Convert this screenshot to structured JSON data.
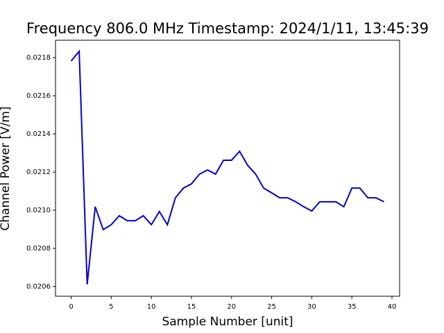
{
  "chart_data": {
    "type": "line",
    "title": "Frequency 806.0 MHz Timestamp: 2024/1/11, 13:45:39",
    "x_label": "Sample Number [unit]",
    "y_label": "Channel Power [V/m]",
    "x": [
      0,
      1,
      2,
      3,
      4,
      5,
      6,
      7,
      8,
      9,
      10,
      11,
      12,
      13,
      14,
      15,
      16,
      17,
      18,
      19,
      20,
      21,
      22,
      23,
      24,
      25,
      26,
      27,
      28,
      29,
      30,
      31,
      32,
      33,
      34,
      35,
      36,
      37,
      38,
      39
    ],
    "series": [
      {
        "name": "Channel Power",
        "color": "#0000cc",
        "values": [
          0.021782,
          0.021833,
          0.020611,
          0.021018,
          0.020898,
          0.020924,
          0.020971,
          0.020945,
          0.020945,
          0.020971,
          0.020924,
          0.020993,
          0.020924,
          0.021065,
          0.021116,
          0.021138,
          0.021189,
          0.021211,
          0.021189,
          0.021262,
          0.021262,
          0.021309,
          0.021236,
          0.021189,
          0.021116,
          0.021091,
          0.021065,
          0.021065,
          0.021044,
          0.021018,
          0.020996,
          0.021044,
          0.021044,
          0.021044,
          0.021018,
          0.021116,
          0.021116,
          0.021065,
          0.021065,
          0.021044
        ]
      }
    ],
    "xlim": [
      -1.95,
      40.95
    ],
    "xticks": [
      0,
      5,
      10,
      15,
      20,
      25,
      30,
      35,
      40
    ],
    "ylim": [
      0.020549,
      0.021891
    ],
    "yticks": [
      0.0206,
      0.0208,
      {
        "value": 0.021,
        "label": "0.0210"
      },
      0.0212,
      0.0214,
      0.0216,
      0.0218
    ]
  }
}
